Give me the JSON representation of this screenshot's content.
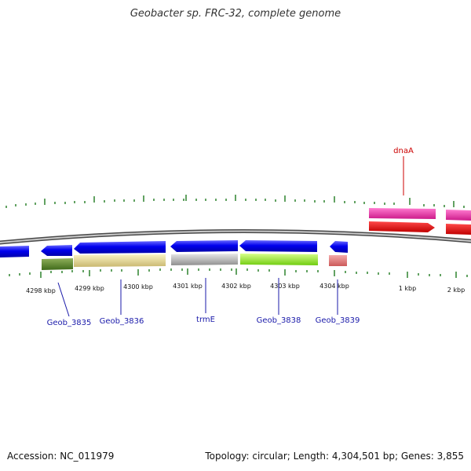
{
  "title": "Geobacter sp. FRC-32, complete genome",
  "footer": {
    "accession": "Accession: NC_011979",
    "summary": "Topology: circular; Length: 4,304,501 bp; Genes: 3,855"
  },
  "colors": {
    "backbone": "#9a9a9a",
    "tick": "#1f7a1f",
    "gene_label": "#1a1aaa",
    "highlight_label": "#cc0000",
    "forward_gene": "#0000ee"
  },
  "scale_labels": [
    "4298 kbp",
    "4299 kbp",
    "4300 kbp",
    "4301 kbp",
    "4302 kbp",
    "4303 kbp",
    "4304 kbp",
    "1 kbp",
    "2 kbp"
  ],
  "gene_labels": [
    {
      "text": "Geob_3835",
      "color": "#1a1aaa"
    },
    {
      "text": "Geob_3836",
      "color": "#1a1aaa"
    },
    {
      "text": "trmE",
      "color": "#1a1aaa"
    },
    {
      "text": "Geob_3838",
      "color": "#1a1aaa"
    },
    {
      "text": "Geob_3839",
      "color": "#1a1aaa"
    },
    {
      "text": "dnaA",
      "color": "#cc0000"
    }
  ]
}
